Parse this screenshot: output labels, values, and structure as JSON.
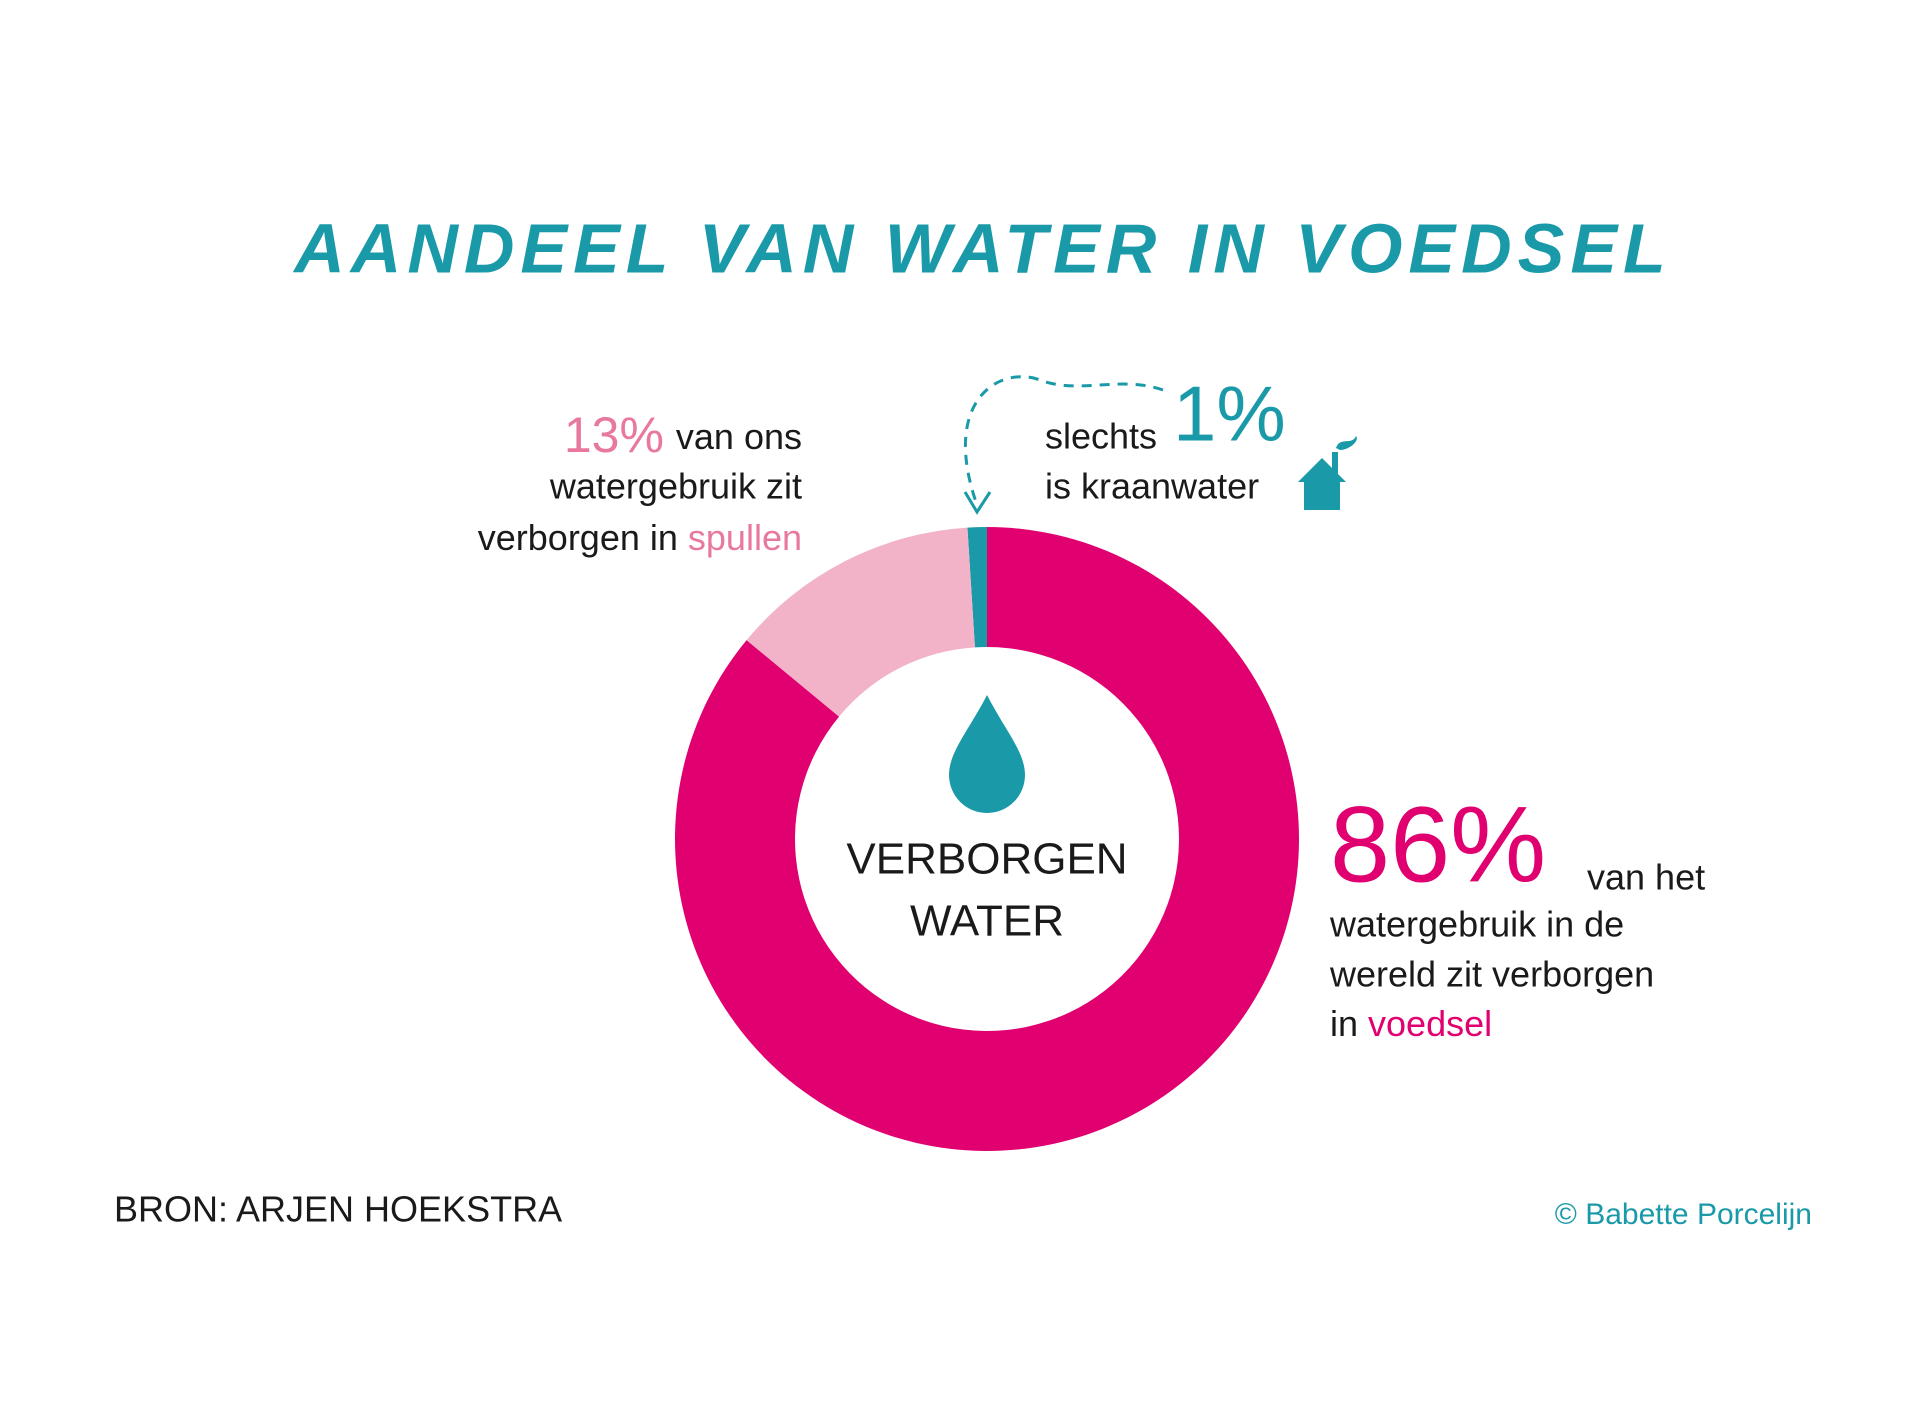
{
  "chart_data": {
    "type": "donut",
    "title": "AANDEEL VAN WATER IN VOEDSEL",
    "values": [
      1,
      86,
      13
    ],
    "value_labels": [
      "1%",
      "86%",
      "13%"
    ],
    "colors": [
      "#1a9aa8",
      "#e0006f",
      "#f2b3c8"
    ],
    "center_label": [
      "VERBORGEN",
      "WATER"
    ],
    "annotations": [
      {
        "lines": [
          "slechts",
          "is kraanwater"
        ]
      },
      {
        "lines": [
          "van het",
          "watergebruik in de",
          "wereld zit verborgen",
          "in"
        ],
        "highlight": "voedsel"
      },
      {
        "lines": [
          "van ons",
          "watergebruik zit",
          "verborgen in"
        ],
        "highlight": "spullen"
      }
    ],
    "source": "BRON: ARJEN HOEKSTRA",
    "credit": "© Babette Porcelijn"
  }
}
